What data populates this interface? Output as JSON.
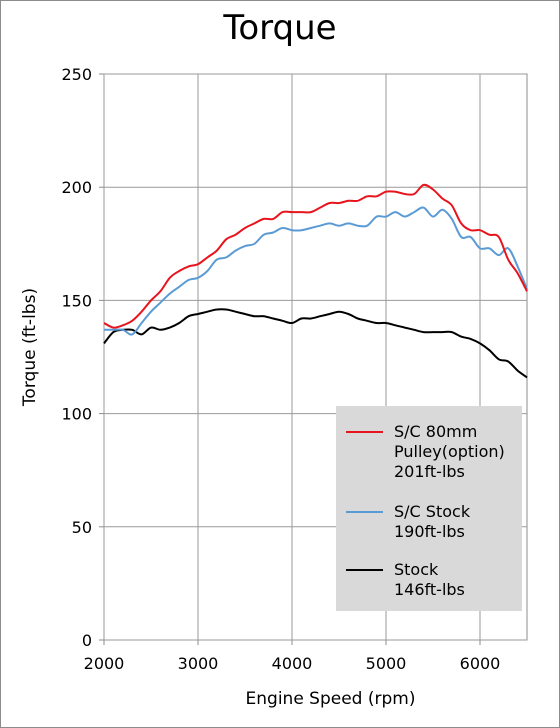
{
  "chart_data": {
    "type": "line",
    "title": "Torque",
    "xlabel": "Engine Speed (rpm)",
    "ylabel": "Torque (ft-lbs)",
    "xlim": [
      2000,
      6500
    ],
    "ylim": [
      0,
      250
    ],
    "x_ticks": [
      2000,
      3000,
      4000,
      5000,
      6000
    ],
    "y_ticks": [
      0,
      50,
      100,
      150,
      200,
      250
    ],
    "grid": true,
    "legend_position": "lower-right",
    "series": [
      {
        "name": "S/C 80mm Pulley(option) 201ft-lbs",
        "legend_lines": [
          "S/C 80mm",
          "Pulley(option)",
          "201ft-lbs"
        ],
        "color": "#e8141d",
        "points": [
          [
            2000,
            140
          ],
          [
            2100,
            138
          ],
          [
            2200,
            139
          ],
          [
            2300,
            141
          ],
          [
            2400,
            145
          ],
          [
            2500,
            150
          ],
          [
            2600,
            154
          ],
          [
            2700,
            160
          ],
          [
            2800,
            163
          ],
          [
            2900,
            165
          ],
          [
            3000,
            166
          ],
          [
            3100,
            169
          ],
          [
            3200,
            172
          ],
          [
            3300,
            177
          ],
          [
            3400,
            179
          ],
          [
            3500,
            182
          ],
          [
            3600,
            184
          ],
          [
            3700,
            186
          ],
          [
            3800,
            186
          ],
          [
            3900,
            189
          ],
          [
            4000,
            189
          ],
          [
            4100,
            189
          ],
          [
            4200,
            189
          ],
          [
            4300,
            191
          ],
          [
            4400,
            193
          ],
          [
            4500,
            193
          ],
          [
            4600,
            194
          ],
          [
            4700,
            194
          ],
          [
            4800,
            196
          ],
          [
            4900,
            196
          ],
          [
            5000,
            198
          ],
          [
            5100,
            198
          ],
          [
            5200,
            197
          ],
          [
            5300,
            197
          ],
          [
            5400,
            201
          ],
          [
            5500,
            199
          ],
          [
            5600,
            195
          ],
          [
            5700,
            192
          ],
          [
            5800,
            184
          ],
          [
            5900,
            181
          ],
          [
            6000,
            181
          ],
          [
            6100,
            179
          ],
          [
            6200,
            178
          ],
          [
            6300,
            168
          ],
          [
            6400,
            162
          ],
          [
            6500,
            154
          ]
        ]
      },
      {
        "name": "S/C Stock 190ft-lbs",
        "legend_lines": [
          "S/C Stock",
          "190ft-lbs"
        ],
        "color": "#5b9bd5",
        "points": [
          [
            2000,
            137
          ],
          [
            2100,
            137
          ],
          [
            2200,
            137
          ],
          [
            2300,
            135
          ],
          [
            2400,
            140
          ],
          [
            2500,
            145
          ],
          [
            2600,
            149
          ],
          [
            2700,
            153
          ],
          [
            2800,
            156
          ],
          [
            2900,
            159
          ],
          [
            3000,
            160
          ],
          [
            3100,
            163
          ],
          [
            3200,
            168
          ],
          [
            3300,
            169
          ],
          [
            3400,
            172
          ],
          [
            3500,
            174
          ],
          [
            3600,
            175
          ],
          [
            3700,
            179
          ],
          [
            3800,
            180
          ],
          [
            3900,
            182
          ],
          [
            4000,
            181
          ],
          [
            4100,
            181
          ],
          [
            4200,
            182
          ],
          [
            4300,
            183
          ],
          [
            4400,
            184
          ],
          [
            4500,
            183
          ],
          [
            4600,
            184
          ],
          [
            4700,
            183
          ],
          [
            4800,
            183
          ],
          [
            4900,
            187
          ],
          [
            5000,
            187
          ],
          [
            5100,
            189
          ],
          [
            5200,
            187
          ],
          [
            5300,
            189
          ],
          [
            5400,
            191
          ],
          [
            5500,
            187
          ],
          [
            5600,
            190
          ],
          [
            5700,
            186
          ],
          [
            5800,
            178
          ],
          [
            5900,
            178
          ],
          [
            6000,
            173
          ],
          [
            6100,
            173
          ],
          [
            6200,
            170
          ],
          [
            6300,
            173
          ],
          [
            6400,
            165
          ],
          [
            6500,
            155
          ]
        ]
      },
      {
        "name": "Stock 146ft-lbs",
        "legend_lines": [
          "Stock",
          "146ft-lbs"
        ],
        "color": "#000000",
        "points": [
          [
            2000,
            131
          ],
          [
            2100,
            136
          ],
          [
            2200,
            137
          ],
          [
            2300,
            137
          ],
          [
            2400,
            135
          ],
          [
            2500,
            138
          ],
          [
            2600,
            137
          ],
          [
            2700,
            138
          ],
          [
            2800,
            140
          ],
          [
            2900,
            143
          ],
          [
            3000,
            144
          ],
          [
            3100,
            145
          ],
          [
            3200,
            146
          ],
          [
            3300,
            146
          ],
          [
            3400,
            145
          ],
          [
            3500,
            144
          ],
          [
            3600,
            143
          ],
          [
            3700,
            143
          ],
          [
            3800,
            142
          ],
          [
            3900,
            141
          ],
          [
            4000,
            140
          ],
          [
            4100,
            142
          ],
          [
            4200,
            142
          ],
          [
            4300,
            143
          ],
          [
            4400,
            144
          ],
          [
            4500,
            145
          ],
          [
            4600,
            144
          ],
          [
            4700,
            142
          ],
          [
            4800,
            141
          ],
          [
            4900,
            140
          ],
          [
            5000,
            140
          ],
          [
            5100,
            139
          ],
          [
            5200,
            138
          ],
          [
            5300,
            137
          ],
          [
            5400,
            136
          ],
          [
            5500,
            136
          ],
          [
            5600,
            136
          ],
          [
            5700,
            136
          ],
          [
            5800,
            134
          ],
          [
            5900,
            133
          ],
          [
            6000,
            131
          ],
          [
            6100,
            128
          ],
          [
            6200,
            124
          ],
          [
            6300,
            123
          ],
          [
            6400,
            119
          ],
          [
            6500,
            116
          ]
        ]
      }
    ]
  }
}
